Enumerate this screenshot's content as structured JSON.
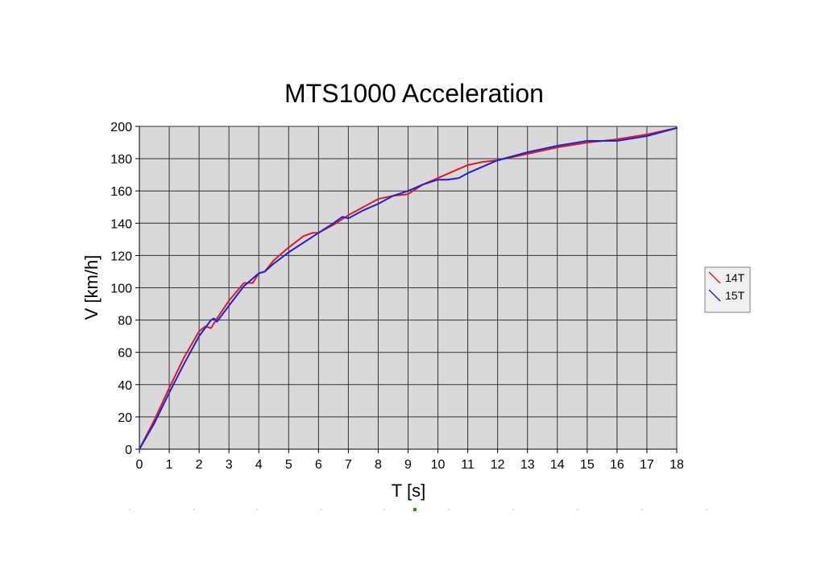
{
  "chart_data": {
    "type": "line",
    "title": "MTS1000 Acceleration",
    "xlabel": "T [s]",
    "ylabel": "V [km/h]",
    "xlim": [
      0,
      18
    ],
    "ylim": [
      0,
      200
    ],
    "x_ticks": [
      0,
      1,
      2,
      3,
      4,
      5,
      6,
      7,
      8,
      9,
      10,
      11,
      12,
      13,
      14,
      15,
      16,
      17,
      18
    ],
    "y_ticks": [
      0,
      20,
      40,
      60,
      80,
      100,
      120,
      140,
      160,
      180,
      200
    ],
    "grid": true,
    "legend_position": "right",
    "series": [
      {
        "name": "14T",
        "color": "#e31a1c",
        "x": [
          0,
          0.5,
          1,
          1.5,
          2,
          2.2,
          2.4,
          2.6,
          3,
          3.5,
          3.8,
          4,
          4.2,
          4.5,
          5,
          5.5,
          5.8,
          6,
          6.5,
          7,
          7.5,
          8,
          8.5,
          9,
          9.5,
          10,
          10.5,
          11,
          11.5,
          12,
          13,
          14,
          15,
          16,
          17,
          18
        ],
        "y": [
          0,
          18,
          38,
          57,
          73,
          76,
          75,
          81,
          92,
          103,
          103,
          109,
          110,
          117,
          125,
          132,
          134,
          134,
          139,
          145,
          150,
          155,
          157,
          158,
          164,
          168,
          172,
          176,
          178,
          179,
          183,
          187,
          190,
          192,
          195,
          199
        ]
      },
      {
        "name": "15T",
        "color": "#1f1fe0",
        "x": [
          0,
          0.5,
          1,
          1.5,
          2,
          2.2,
          2.4,
          2.5,
          2.6,
          3,
          3.5,
          4,
          4.2,
          4.5,
          5,
          5.5,
          6,
          6.5,
          6.8,
          7,
          7.5,
          8,
          8.5,
          9,
          9.5,
          10,
          10.3,
          10.7,
          11,
          11.5,
          12,
          13,
          14,
          15,
          16,
          17,
          18
        ],
        "y": [
          0,
          16,
          35,
          53,
          70,
          75,
          80,
          81,
          79,
          89,
          101,
          109,
          110,
          115,
          122,
          128,
          134,
          140,
          144,
          143,
          148,
          152,
          157,
          160,
          164,
          167,
          167,
          168,
          171,
          175,
          179,
          184,
          188,
          191,
          191,
          194,
          199
        ]
      }
    ]
  }
}
